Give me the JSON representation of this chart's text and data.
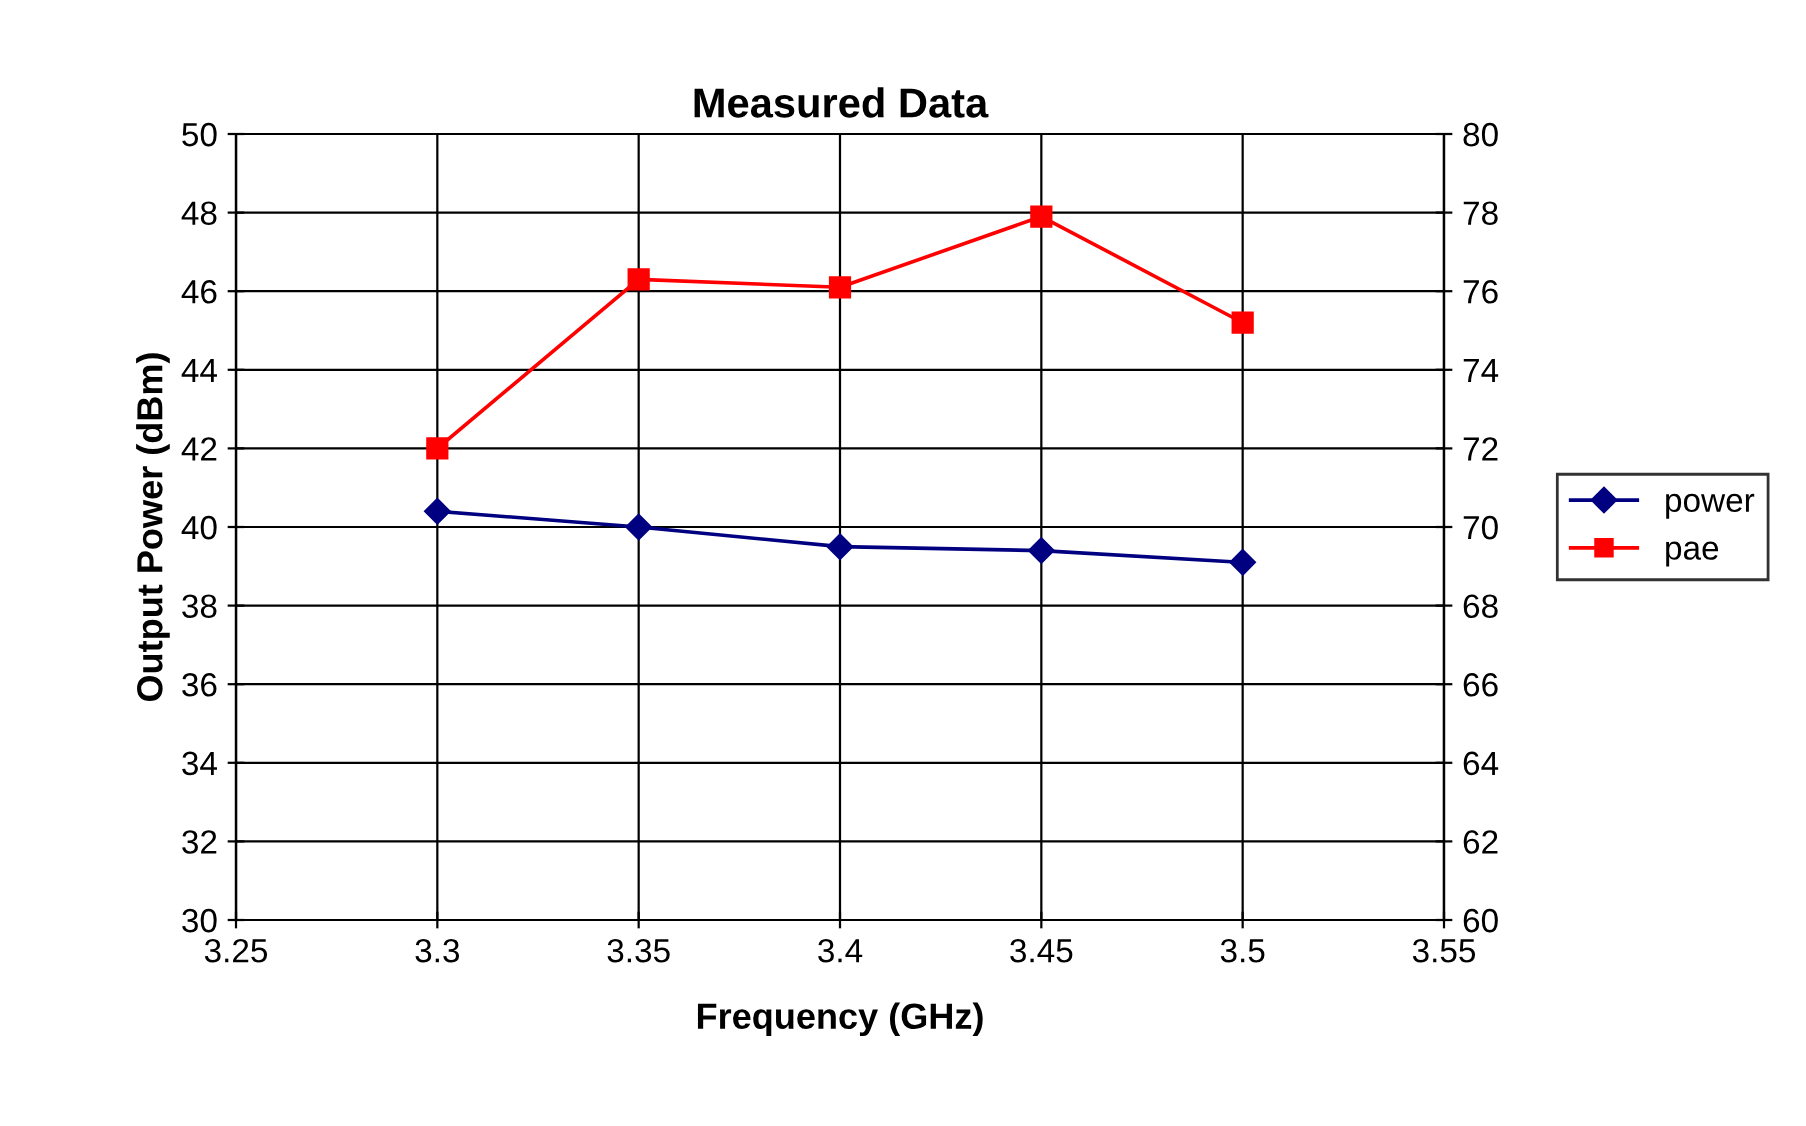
{
  "chart_data": {
    "type": "line",
    "title": "Measured Data",
    "xlabel": "Frequency (GHz)",
    "ylabel": "Output Power (dBm)",
    "x": [
      3.3,
      3.35,
      3.4,
      3.45,
      3.5
    ],
    "series": [
      {
        "name": "power",
        "color": "#000080",
        "marker": "diamond",
        "values": [
          40.4,
          40.0,
          39.5,
          39.4,
          39.1
        ]
      },
      {
        "name": "pae",
        "color": "#ff0000",
        "marker": "square",
        "axis": "y2",
        "values": [
          72.0,
          76.3,
          76.1,
          77.9,
          75.2
        ]
      }
    ],
    "xlim": [
      3.25,
      3.55
    ],
    "xticks": [
      3.25,
      3.3,
      3.35,
      3.4,
      3.45,
      3.5,
      3.55
    ],
    "ylim": [
      30,
      50
    ],
    "yticks": [
      30,
      32,
      34,
      36,
      38,
      40,
      42,
      44,
      46,
      48,
      50
    ],
    "y2lim": [
      60,
      80
    ],
    "y2ticks": [
      60,
      62,
      64,
      66,
      68,
      70,
      72,
      74,
      76,
      78,
      80
    ],
    "grid": true,
    "legend": "right"
  }
}
